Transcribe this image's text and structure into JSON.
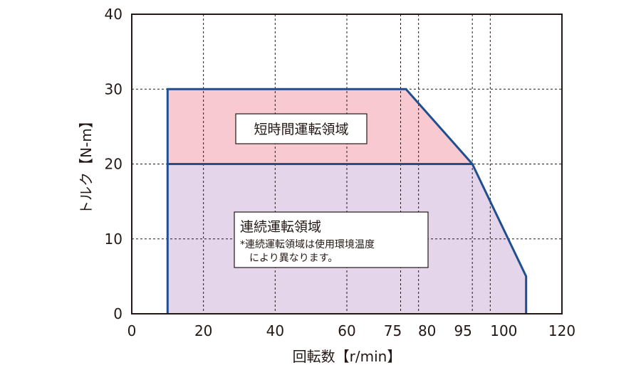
{
  "chart_data": {
    "type": "area",
    "title": "",
    "xlabel": "回転数【r/min】",
    "ylabel": "トルク【N-m】",
    "xlim": [
      0,
      120
    ],
    "ylim": [
      0,
      40
    ],
    "x_ticks": [
      {
        "value": 0,
        "label": "0"
      },
      {
        "value": 20,
        "label": "20"
      },
      {
        "value": 40,
        "label": "40"
      },
      {
        "value": 60,
        "label": "60"
      },
      {
        "value": 75,
        "label": "75"
      },
      {
        "value": 80,
        "label": "80"
      },
      {
        "value": 95,
        "label": "95"
      },
      {
        "value": 100,
        "label": "100"
      },
      {
        "value": 120,
        "label": "120"
      }
    ],
    "y_ticks": [
      {
        "value": 0,
        "label": "0"
      },
      {
        "value": 10,
        "label": "10"
      },
      {
        "value": 20,
        "label": "20"
      },
      {
        "value": 30,
        "label": "30"
      },
      {
        "value": 40,
        "label": "40"
      }
    ],
    "grid": true,
    "series": [
      {
        "name": "短時間運転領域",
        "color": "#f8c9d0",
        "points": [
          [
            10,
            20
          ],
          [
            10,
            30
          ],
          [
            76.5,
            30
          ],
          [
            95,
            20
          ]
        ]
      },
      {
        "name": "連続運転領域",
        "note_lines": [
          "*連続運転領域は使用環境温度",
          "により異なります。"
        ],
        "color": "#e5d5ea",
        "points": [
          [
            10,
            0
          ],
          [
            10,
            20
          ],
          [
            95,
            20
          ],
          [
            110,
            5
          ],
          [
            110,
            0
          ]
        ]
      }
    ],
    "boundary": [
      [
        10,
        0
      ],
      [
        10,
        30
      ],
      [
        76.5,
        30
      ],
      [
        95,
        20
      ],
      [
        110,
        5
      ],
      [
        110,
        0
      ]
    ],
    "boundary_color": "#1f4e91"
  }
}
